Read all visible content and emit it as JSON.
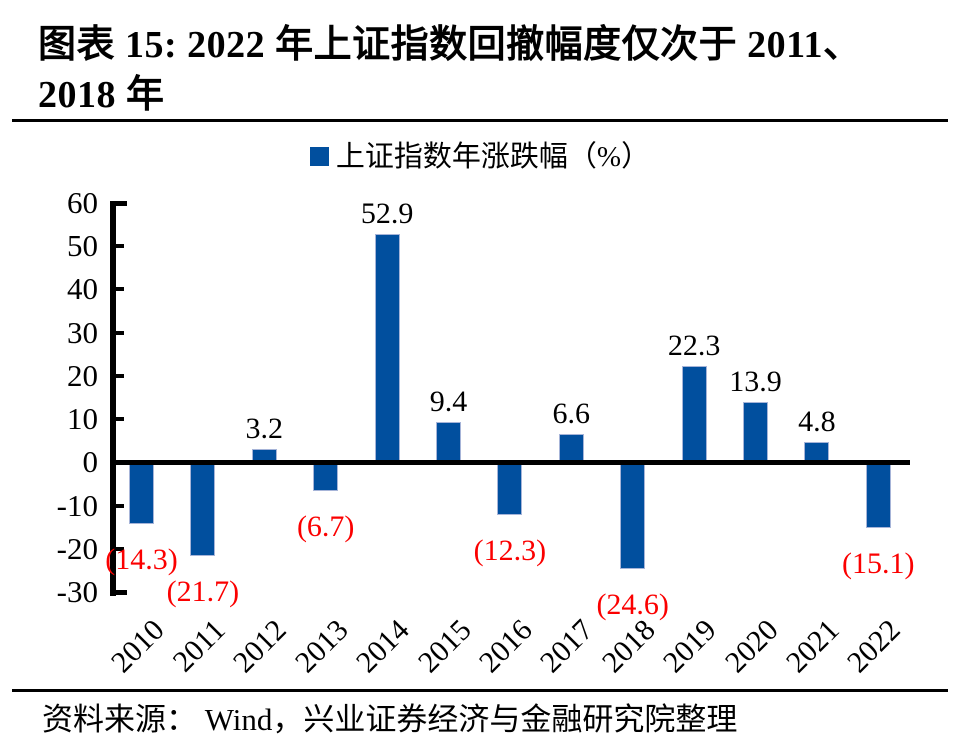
{
  "title": {
    "line1": "图表 15: 2022 年上证指数回撤幅度仅次于 2011、",
    "line2": "2018 年"
  },
  "legend": {
    "label": "上证指数年涨跌幅（%）"
  },
  "source": {
    "text": "资料来源： Wind，兴业证券经济与金融研究院整理"
  },
  "colors": {
    "bar_fill": "#014F9E",
    "bar_border": "#A6B4D8",
    "negative_label": "#FB0000",
    "positive_label": "#000000",
    "axis": "#000000"
  },
  "chart_data": {
    "type": "bar",
    "title": "上证指数年涨跌幅（%）",
    "categories": [
      "2010",
      "2011",
      "2012",
      "2013",
      "2014",
      "2015",
      "2016",
      "2017",
      "2018",
      "2019",
      "2020",
      "2021",
      "2022"
    ],
    "values": [
      -14.3,
      -21.7,
      3.2,
      -6.7,
      52.9,
      9.4,
      -12.3,
      6.6,
      -24.6,
      22.3,
      13.9,
      4.8,
      -15.1
    ],
    "data_labels": [
      "(14.3)",
      "(21.7)",
      "3.2",
      "(6.7)",
      "52.9",
      "9.4",
      "(12.3)",
      "6.6",
      "(24.6)",
      "22.3",
      "13.9",
      "4.8",
      "(15.1)"
    ],
    "xlabel": "",
    "ylabel": "",
    "ylim": [
      -30,
      60
    ],
    "ytick_interval": 10,
    "ytick_labels": [
      "60",
      "50",
      "40",
      "30",
      "20",
      "10",
      "0",
      "-10",
      "-20",
      "-30"
    ],
    "grid": false,
    "legend_position": "top",
    "negative_label_style": "red-parentheses"
  }
}
